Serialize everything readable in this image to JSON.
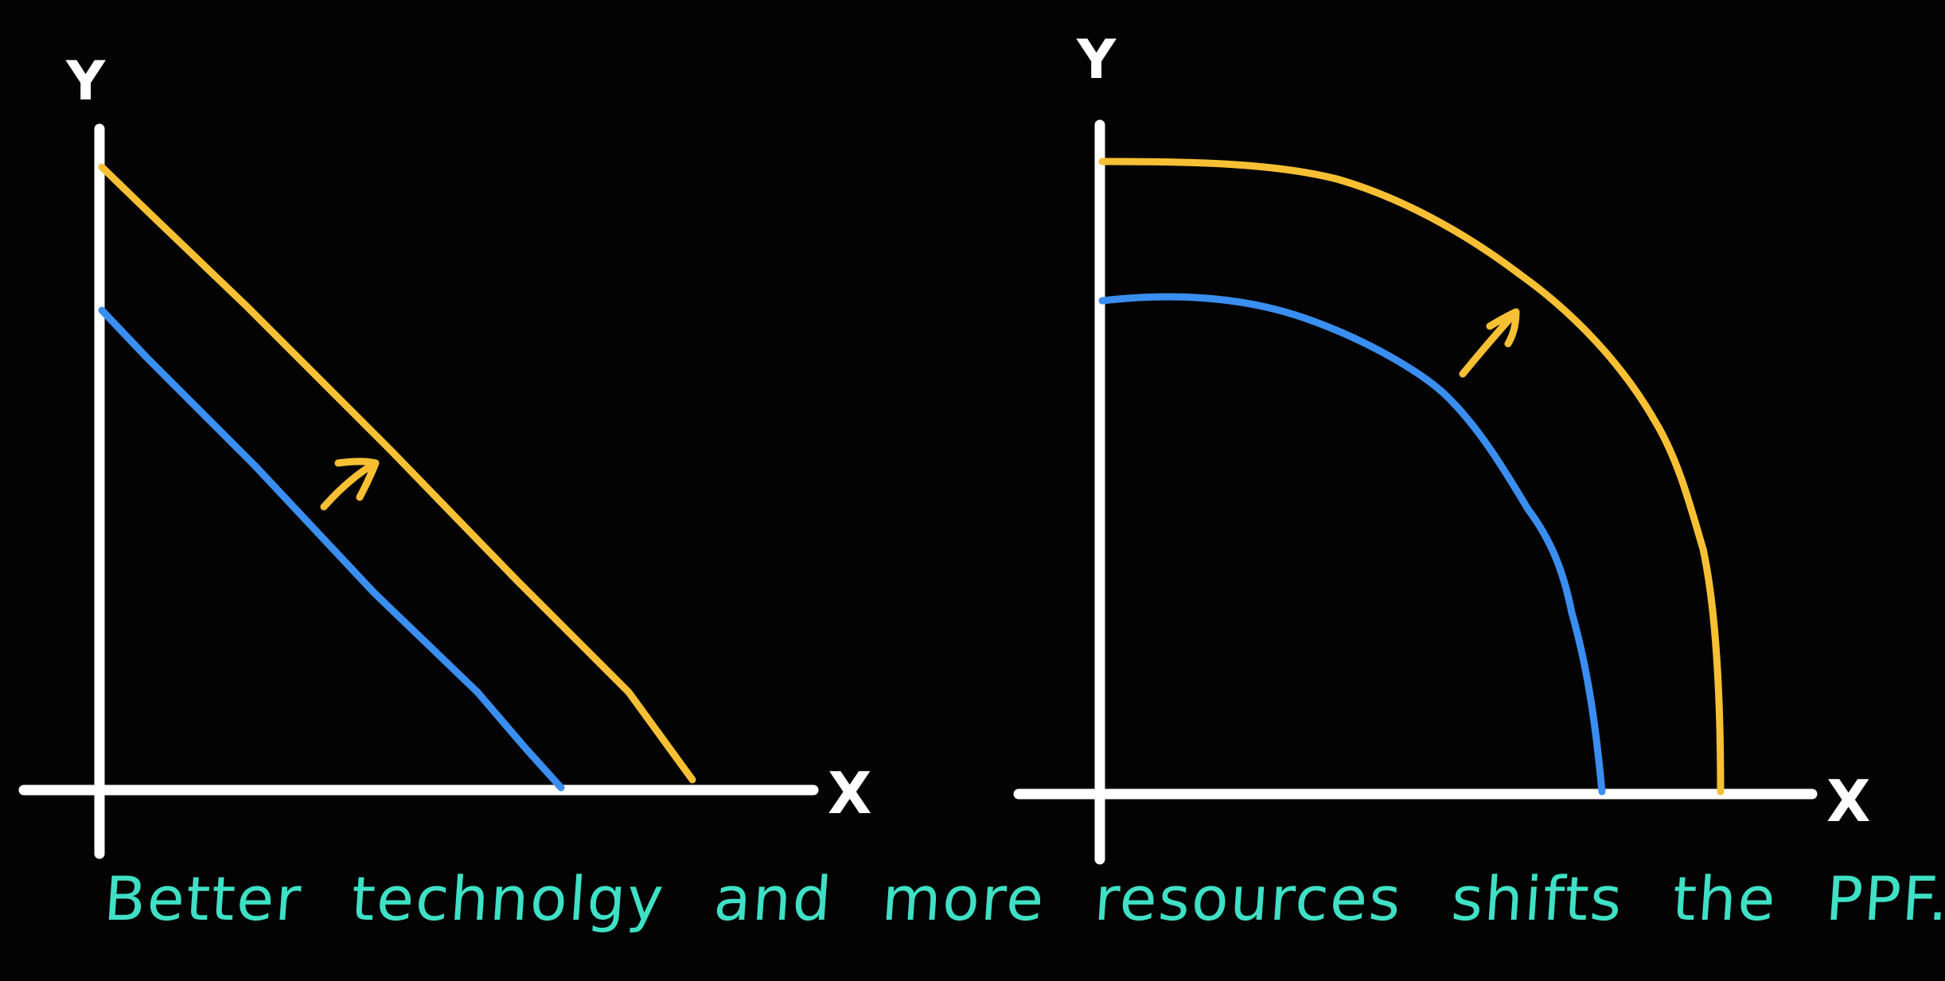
{
  "colors": {
    "background": "#030303",
    "axes": "#ffffff",
    "original_curve": "#3a8ef0",
    "shifted_curve": "#f7c034",
    "arrow": "#f7c034",
    "caption": "#3fe0c5"
  },
  "left_diagram": {
    "type": "linear PPF shift",
    "y_axis_label": "Y",
    "x_axis_label": "X"
  },
  "right_diagram": {
    "type": "bowed-out PPF shift",
    "y_axis_label": "Y",
    "x_axis_label": "X"
  },
  "caption": "Better technolgy and more resources shifts the PPF."
}
